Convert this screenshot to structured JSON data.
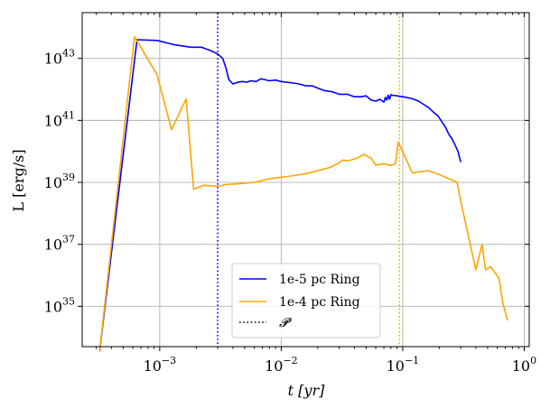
{
  "chart_data": {
    "type": "line",
    "title": "",
    "xlabel": "t [yr]",
    "ylabel": "L [erg/s]",
    "xscale": "log",
    "yscale": "log",
    "xlim": [
      0.00023,
      1.1
    ],
    "ylim": [
      5e+33,
      3e+44
    ],
    "x_ticks": [
      {
        "value": 0.001,
        "base": "10",
        "exp": "−3"
      },
      {
        "value": 0.01,
        "base": "10",
        "exp": "−2"
      },
      {
        "value": 0.1,
        "base": "10",
        "exp": "−1"
      },
      {
        "value": 1,
        "base": "10",
        "exp": "0"
      }
    ],
    "y_ticks": [
      {
        "value": 1e+35,
        "base": "10",
        "exp": "35"
      },
      {
        "value": 1e+37,
        "base": "10",
        "exp": "37"
      },
      {
        "value": 1e+39,
        "base": "10",
        "exp": "39"
      },
      {
        "value": 1e+41,
        "base": "10",
        "exp": "41"
      },
      {
        "value": 1e+43,
        "base": "10",
        "exp": "43"
      }
    ],
    "grid": true,
    "legend_position": "lower-center",
    "series": [
      {
        "name": "1e-5 pc Ring",
        "color": "#0000ff",
        "x": [
          0.00032,
          0.00065,
          0.00095,
          0.0013,
          0.0018,
          0.0022,
          0.0026,
          0.003,
          0.0033,
          0.0035,
          0.0037,
          0.004,
          0.0044,
          0.0048,
          0.0052,
          0.0056,
          0.0062,
          0.0068,
          0.0072,
          0.008,
          0.009,
          0.01,
          0.011,
          0.0125,
          0.014,
          0.016,
          0.018,
          0.02,
          0.023,
          0.026,
          0.03,
          0.035,
          0.04,
          0.045,
          0.05,
          0.055,
          0.06,
          0.065,
          0.07,
          0.072,
          0.074,
          0.076,
          0.078,
          0.08,
          0.082,
          0.09,
          0.105,
          0.12,
          0.135,
          0.15,
          0.165,
          0.18,
          0.195,
          0.21,
          0.225,
          0.24,
          0.255,
          0.27,
          0.285,
          0.3
        ],
        "values": [
          3.5e+33,
          4e+43,
          3.8e+43,
          2.8e+43,
          2.3e+43,
          2.3e+43,
          1.8e+43,
          1.4e+43,
          1e+43,
          5e+42,
          2.1e+42,
          1.5e+42,
          1.7e+42,
          1.8e+42,
          1.7e+42,
          1.9e+42,
          1.8e+42,
          2.2e+42,
          2.1e+42,
          1.9e+42,
          2e+42,
          1.8e+42,
          1.7e+42,
          1.6e+42,
          1.5e+42,
          1.3e+42,
          1.3e+42,
          1.1e+42,
          9e+41,
          8.5e+41,
          7e+41,
          7e+41,
          5.8e+41,
          5.8e+41,
          6.2e+41,
          4.5e+41,
          4.2e+41,
          4.8e+41,
          3.9e+41,
          5.5e+41,
          4.5e+41,
          6.5e+41,
          4.8e+41,
          6.8e+41,
          6.5e+41,
          6.2e+41,
          5.6e+41,
          5e+41,
          4.2e+41,
          3.2e+41,
          2.5e+41,
          1.8e+41,
          1.4e+41,
          9e+40,
          6e+40,
          3.5e+40,
          2.5e+40,
          1.6e+40,
          1e+40,
          4.5e+39
        ]
      },
      {
        "name": "1e-4 pc Ring",
        "color": "#ffa500",
        "x": [
          0.00032,
          0.00062,
          0.00095,
          0.00125,
          0.00165,
          0.0019,
          0.0023,
          0.003,
          0.0035,
          0.0045,
          0.006,
          0.008,
          0.012,
          0.017,
          0.025,
          0.029,
          0.032,
          0.036,
          0.042,
          0.048,
          0.055,
          0.06,
          0.07,
          0.08,
          0.087,
          0.092,
          0.12,
          0.16,
          0.2,
          0.28,
          0.3,
          0.4,
          0.45,
          0.48,
          0.53,
          0.62,
          0.67,
          0.73
        ],
        "values": [
          3.5e+33,
          5e+43,
          3e+42,
          5e+40,
          5e+41,
          6e+38,
          8e+38,
          7.5e+38,
          8.5e+38,
          9e+38,
          1e+39,
          1.3e+39,
          1.6e+39,
          2e+39,
          3e+39,
          4e+39,
          5.2e+39,
          5e+39,
          6e+39,
          8e+39,
          6e+39,
          3.6e+39,
          4e+39,
          3.5e+39,
          4e+39,
          2e+40,
          2e+39,
          2.4e+39,
          1.8e+39,
          1e+39,
          2.5e+38,
          1.5e+36,
          1e+37,
          1.5e+36,
          1.9e+36,
          8e+35,
          1.2e+35,
          3.5e+34
        ]
      }
    ],
    "vlines": [
      {
        "x": 0.003,
        "color": "#0000ff",
        "style": "dotted"
      },
      {
        "x": 0.094,
        "color": "#ffa500",
        "style": "dotted"
      }
    ],
    "legend": [
      {
        "label": "1e-5 pc Ring",
        "color": "#0000ff",
        "style": "solid"
      },
      {
        "label": "1e-4 pc Ring",
        "color": "#ffa500",
        "style": "solid"
      },
      {
        "label": "𝓟",
        "color": "#000000",
        "style": "dotted"
      }
    ]
  }
}
